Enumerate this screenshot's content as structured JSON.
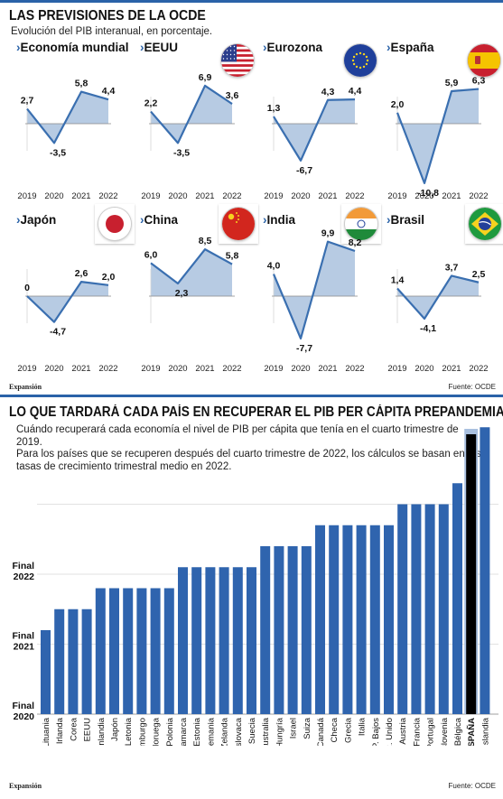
{
  "section1": {
    "title": "LAS PREVISIONES DE LA OCDE",
    "subtitle": "Evolución del PIB interanual, en porcentaje.",
    "footer_left": "Expansión",
    "footer_right": "Fuente: OCDE"
  },
  "section2": {
    "title": "LO QUE TARDARÁ CADA PAÍS EN RECUPERAR EL PIB PER CÁPITA PREPANDEMIA",
    "subtitle_line1": "Cuándo recuperará cada economía el nivel de PIB per cápita que tenía en el cuarto trimestre de 2019.",
    "subtitle_line2": "Para los países que se recuperen después del cuarto trimestre de 2022, los cálculos se basan en las",
    "subtitle_line3": "tasas de crecimiento trimestral medio en 2022.",
    "footer_left": "Expansión",
    "footer_right": "Fuente: OCDE"
  },
  "colors": {
    "accent": "#2a62a8",
    "line": "#3a6fb0",
    "area": "#b7cbe3",
    "bar": "#2f64ae",
    "bar_highlight": "#000000",
    "bar_highlight_bg": "#a9c0df"
  },
  "chart_data": [
    {
      "type": "line",
      "title": "Economía mundial",
      "flag": "",
      "x": [
        "2019",
        "2020",
        "2021",
        "2022"
      ],
      "values": [
        2.7,
        -3.5,
        5.8,
        4.4
      ],
      "labels": [
        "2,7",
        "-3,5",
        "5,8",
        "4,4"
      ]
    },
    {
      "type": "line",
      "title": "EEUU",
      "flag": "usa-flag",
      "x": [
        "2019",
        "2020",
        "2021",
        "2022"
      ],
      "values": [
        2.2,
        -3.5,
        6.9,
        3.6
      ],
      "labels": [
        "2,2",
        "-3,5",
        "6,9",
        "3,6"
      ]
    },
    {
      "type": "line",
      "title": "Eurozona",
      "flag": "eu-flag",
      "x": [
        "2019",
        "2020",
        "2021",
        "2022"
      ],
      "values": [
        1.3,
        -6.7,
        4.3,
        4.4
      ],
      "labels": [
        "1,3",
        "-6,7",
        "4,3",
        "4,4"
      ]
    },
    {
      "type": "line",
      "title": "España",
      "flag": "spain-flag",
      "x": [
        "2019",
        "2020",
        "2021",
        "2022"
      ],
      "values": [
        2.0,
        -10.8,
        5.9,
        6.3
      ],
      "labels": [
        "2,0",
        "-10,8",
        "5,9",
        "6,3"
      ]
    },
    {
      "type": "line",
      "title": "Japón",
      "flag": "japan-flag",
      "x": [
        "2019",
        "2020",
        "2021",
        "2022"
      ],
      "values": [
        0,
        -4.7,
        2.6,
        2.0
      ],
      "labels": [
        "0",
        "-4,7",
        "2,6",
        "2,0"
      ]
    },
    {
      "type": "line",
      "title": "China",
      "flag": "china-flag",
      "x": [
        "2019",
        "2020",
        "2021",
        "2022"
      ],
      "values": [
        6.0,
        2.3,
        8.5,
        5.8
      ],
      "labels": [
        "6,0",
        "2,3",
        "8,5",
        "5,8"
      ]
    },
    {
      "type": "line",
      "title": "India",
      "flag": "india-flag",
      "x": [
        "2019",
        "2020",
        "2021",
        "2022"
      ],
      "values": [
        4.0,
        -7.7,
        9.9,
        8.2
      ],
      "labels": [
        "4,0",
        "-7,7",
        "9,9",
        "8,2"
      ]
    },
    {
      "type": "line",
      "title": "Brasil",
      "flag": "brazil-flag",
      "x": [
        "2019",
        "2020",
        "2021",
        "2022"
      ],
      "values": [
        1.4,
        -4.1,
        3.7,
        2.5
      ],
      "labels": [
        "1,4",
        "-4,1",
        "3,7",
        "2,5"
      ]
    },
    {
      "type": "bar",
      "y_axis_labels": [
        "Final 2020",
        "Final 2021",
        "Final 2022"
      ],
      "y_axis_units": "years, year-end (Q4) of recovery; 2020 = 0, 2021 = 1, 2022 = 2",
      "ylim": [
        0,
        4.4
      ],
      "categories": [
        "Lituania",
        "Irlanda",
        "Corea",
        "EEUU",
        "Finlandia",
        "Japón",
        "Letonia",
        "Luxemburgo",
        "Noruega",
        "Polonia",
        "Dinamarca",
        "Estonia",
        "Alemania",
        "N. Zelanda",
        "R. Eslovaca",
        "Suecia",
        "Australia",
        "Hungría",
        "Israel",
        "Suiza",
        "Canadá",
        "Rep. Checa",
        "Grecia",
        "Italia",
        "P. Bajos",
        "R. Unido",
        "Austria",
        "Francia",
        "Portugal",
        "Eslovenia",
        "Bélgica",
        "ESPAÑA",
        "Islandia"
      ],
      "values": [
        1.2,
        1.5,
        1.5,
        1.5,
        1.8,
        1.8,
        1.8,
        1.8,
        1.8,
        1.8,
        2.1,
        2.1,
        2.1,
        2.1,
        2.1,
        2.1,
        2.4,
        2.4,
        2.4,
        2.4,
        2.7,
        2.7,
        2.7,
        2.7,
        2.7,
        2.7,
        3.0,
        3.0,
        3.0,
        3.0,
        3.3,
        4.0,
        4.1
      ],
      "highlight": "ESPAÑA"
    }
  ]
}
